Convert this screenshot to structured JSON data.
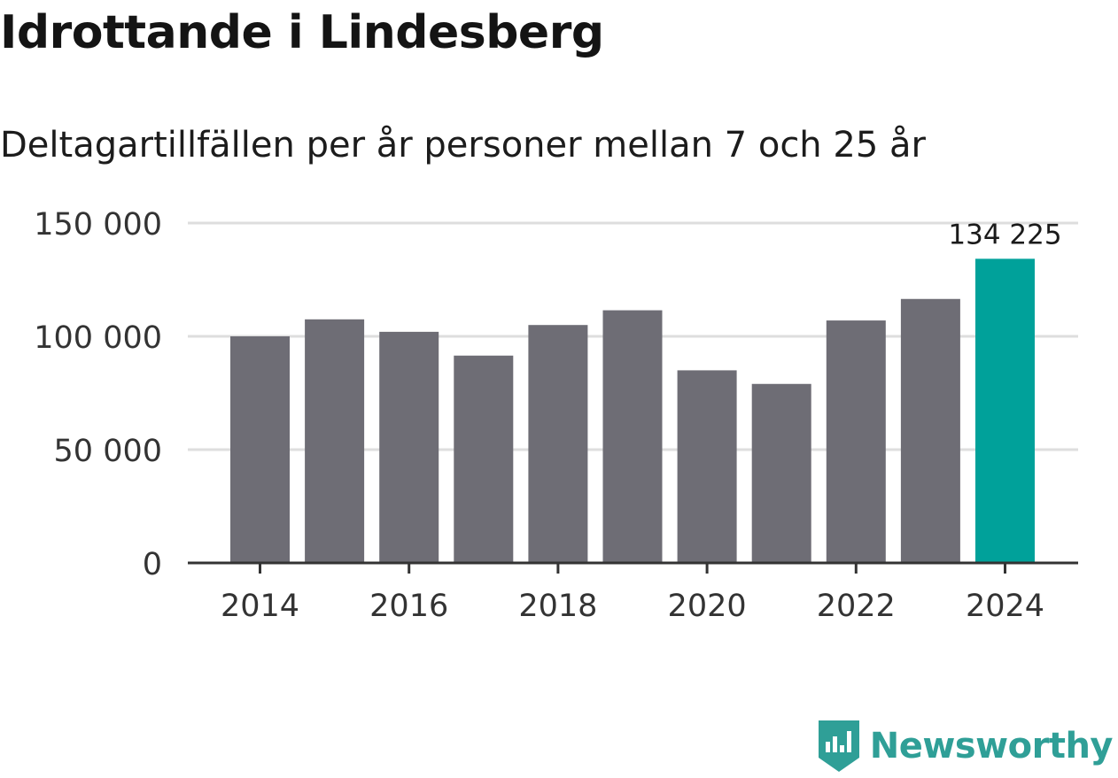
{
  "header": {
    "title": "Idrottande i Lindesberg",
    "subtitle": "Deltagartillfällen per år personer mellan 7 och 25 år"
  },
  "brand": {
    "name": "Newsworthy",
    "icon": "newsworthy-logo-icon",
    "color": "#2f9f97"
  },
  "colors": {
    "bar": "#6e6d75",
    "highlight": "#00a19a",
    "grid": "#dedede",
    "axis": "#333333",
    "text": "#333333"
  },
  "chart_data": {
    "type": "bar",
    "title": "Idrottande i Lindesberg",
    "subtitle": "Deltagartillfällen per år personer mellan 7 och 25 år",
    "xlabel": "",
    "ylabel": "",
    "categories": [
      "2014",
      "2015",
      "2016",
      "2017",
      "2018",
      "2019",
      "2020",
      "2021",
      "2022",
      "2023",
      "2024"
    ],
    "values": [
      100000,
      107500,
      102000,
      91500,
      105000,
      111500,
      85000,
      79000,
      107000,
      116500,
      134225
    ],
    "highlight_index": 10,
    "ylim": [
      0,
      150000
    ],
    "yticks": [
      0,
      50000,
      100000,
      150000
    ],
    "ytick_labels": [
      "0",
      "50 000",
      "100 000",
      "150 000"
    ],
    "xtick_labels": [
      "2014",
      "2016",
      "2018",
      "2020",
      "2022",
      "2024"
    ],
    "annotation": {
      "category": "2024",
      "label": "134 225"
    },
    "grid": true
  }
}
